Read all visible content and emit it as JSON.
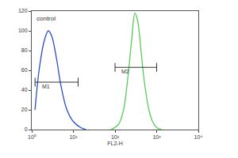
{
  "chart_data": {
    "type": "line",
    "x_label": "FL2-H",
    "log": "x",
    "xlim": [
      1,
      10000
    ],
    "xticks": [
      {
        "value": 1,
        "label": "10⁰"
      },
      {
        "value": 10,
        "label": "10¹"
      },
      {
        "value": 100,
        "label": "10²"
      },
      {
        "value": 1000,
        "label": "10³"
      },
      {
        "value": 10000,
        "label": "10⁴"
      }
    ],
    "ylim": [
      0,
      120
    ],
    "yticks": [
      0,
      20,
      40,
      60,
      80,
      100,
      120
    ],
    "grid": false,
    "series": [
      {
        "name": "control",
        "color": "#2a4fc0",
        "x": [
          1.2,
          1.5,
          2,
          2.5,
          3,
          4,
          5,
          7,
          10,
          15,
          20
        ],
        "values": [
          20,
          60,
          90,
          100,
          95,
          70,
          45,
          20,
          8,
          2,
          0
        ]
      },
      {
        "color": "#5cc95c",
        "x": [
          80,
          120,
          160,
          200,
          250,
          300,
          350,
          420,
          500,
          650,
          800,
          1000,
          1300
        ],
        "values": [
          0,
          5,
          20,
          50,
          90,
          118,
          110,
          80,
          50,
          20,
          8,
          2,
          0
        ]
      }
    ],
    "gates": [
      {
        "label": "M1",
        "x": [
          1.2,
          13
        ],
        "y": 48
      },
      {
        "label": "M2",
        "x": [
          100,
          1000
        ],
        "y": 63
      }
    ]
  }
}
